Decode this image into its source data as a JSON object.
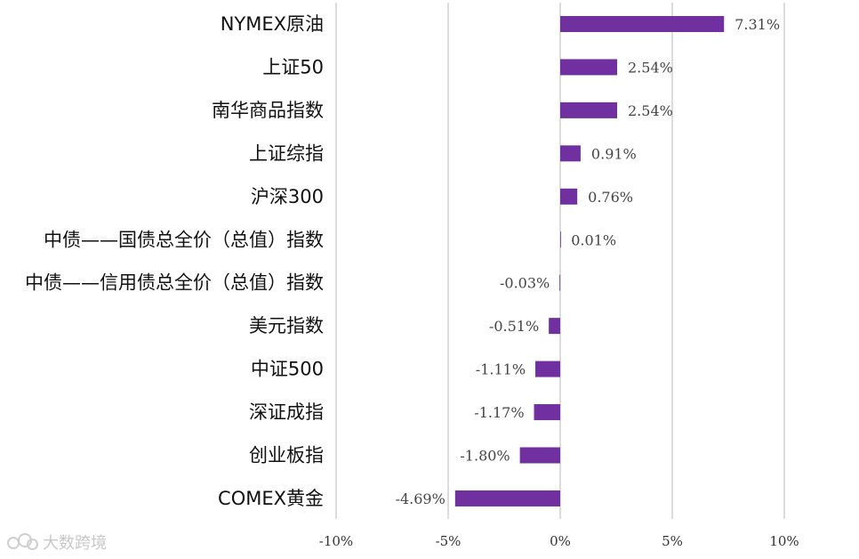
{
  "chart_data": {
    "type": "bar",
    "orientation": "horizontal",
    "categories": [
      "NYMEX原油",
      "上证50",
      "南华商品指数",
      "上证综指",
      "沪深300",
      "中债——国债总全价（总值）指数",
      "中债——信用债总全价（总值）指数",
      "美元指数",
      "中证500",
      "深证成指",
      "创业板指",
      "COMEX黄金"
    ],
    "values": [
      7.31,
      2.54,
      2.54,
      0.91,
      0.76,
      0.01,
      -0.03,
      -0.51,
      -1.11,
      -1.17,
      -1.8,
      -4.69
    ],
    "value_labels": [
      "7.31%",
      "2.54%",
      "2.54%",
      "0.91%",
      "0.76%",
      "0.01%",
      "-0.03%",
      "-0.51%",
      "-1.11%",
      "-1.17%",
      "-1.80%",
      "-4.69%"
    ],
    "xlim": [
      -10,
      10
    ],
    "xticks": [
      -10,
      -5,
      0,
      5,
      10
    ],
    "xtick_labels": [
      "-10%",
      "-5%",
      "0%",
      "5%",
      "10%"
    ],
    "grid": "vertical",
    "bar_color": "#7030a0",
    "title": "",
    "xlabel": "",
    "ylabel": ""
  },
  "watermark": {
    "text": "大数跨境"
  }
}
